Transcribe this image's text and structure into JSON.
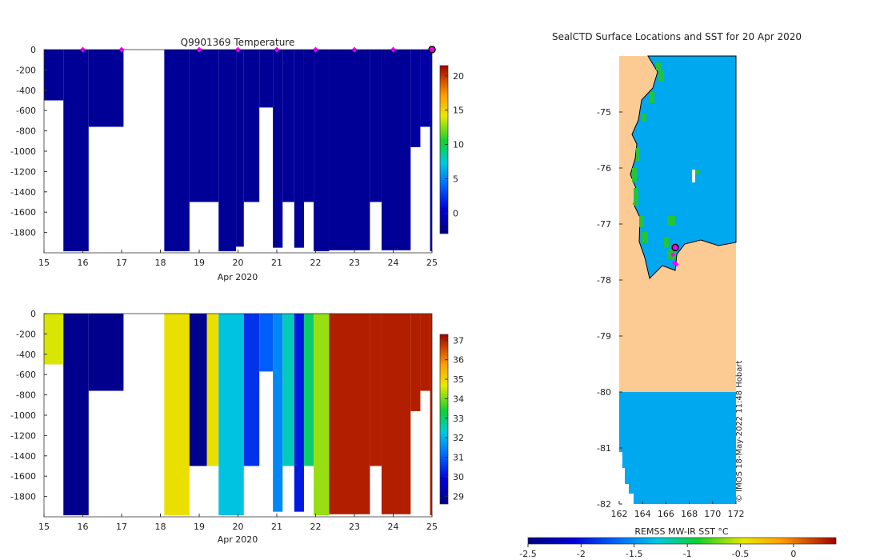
{
  "chart_data": [
    {
      "type": "heatmap",
      "title": "Q9901369  Temperature",
      "xlabel": "Apr 2020",
      "ylabel": "",
      "xlim": [
        15,
        25
      ],
      "ylim": [
        -2000,
        0
      ],
      "x_ticks": [
        "15",
        "16",
        "17",
        "18",
        "19",
        "20",
        "21",
        "22",
        "23",
        "24",
        "25"
      ],
      "y_ticks": [
        "0",
        "-200",
        "-400",
        "-600",
        "-800",
        "-1000",
        "-1200",
        "-1400",
        "-1600",
        "-1800"
      ],
      "colorbar_ticks": [
        "0",
        "5",
        "10",
        "15",
        "20"
      ],
      "colorbar_range": [
        -3,
        21.5
      ],
      "dominant_value": -2,
      "profiles": [
        {
          "x0": 15.0,
          "x1": 15.5,
          "bottom": -500,
          "value": -2
        },
        {
          "x0": 15.5,
          "x1": 16.15,
          "bottom": -1985,
          "value": -2
        },
        {
          "x0": 16.15,
          "x1": 17.05,
          "bottom": -760,
          "value": -2
        },
        {
          "x0": 18.1,
          "x1": 18.75,
          "bottom": -1985,
          "value": -2
        },
        {
          "x0": 18.75,
          "x1": 19.5,
          "bottom": -1500,
          "value": -2
        },
        {
          "x0": 19.5,
          "x1": 19.95,
          "bottom": -1985,
          "value": -2
        },
        {
          "x0": 19.95,
          "x1": 20.15,
          "bottom": -1940,
          "value": -2
        },
        {
          "x0": 20.15,
          "x1": 20.55,
          "bottom": -1500,
          "value": -2
        },
        {
          "x0": 20.55,
          "x1": 20.9,
          "bottom": -570,
          "value": -2
        },
        {
          "x0": 20.9,
          "x1": 21.15,
          "bottom": -1950,
          "value": -2
        },
        {
          "x0": 21.15,
          "x1": 21.45,
          "bottom": -1500,
          "value": -2
        },
        {
          "x0": 21.45,
          "x1": 21.7,
          "bottom": -1950,
          "value": -2
        },
        {
          "x0": 21.7,
          "x1": 21.95,
          "bottom": -1500,
          "value": -2
        },
        {
          "x0": 21.95,
          "x1": 22.35,
          "bottom": -1985,
          "value": -2
        },
        {
          "x0": 22.35,
          "x1": 23.0,
          "bottom": -1975,
          "value": -2
        },
        {
          "x0": 23.0,
          "x1": 23.4,
          "bottom": -1975,
          "value": -2
        },
        {
          "x0": 23.4,
          "x1": 23.7,
          "bottom": -1500,
          "value": -2
        },
        {
          "x0": 23.7,
          "x1": 24.45,
          "bottom": -1975,
          "value": -2
        },
        {
          "x0": 24.45,
          "x1": 24.7,
          "bottom": -960,
          "value": -1.7
        },
        {
          "x0": 24.7,
          "x1": 24.95,
          "bottom": -760,
          "value": -1.5
        },
        {
          "x0": 24.95,
          "x1": 25.1,
          "bottom": -1985,
          "value": -2
        }
      ],
      "markers_x": [
        16,
        17,
        19,
        20,
        21,
        22,
        23,
        24,
        25
      ]
    },
    {
      "type": "heatmap",
      "title": "",
      "xlabel": "Apr 2020",
      "ylabel": "",
      "xlim": [
        15,
        25
      ],
      "ylim": [
        -2000,
        0
      ],
      "x_ticks": [
        "15",
        "16",
        "17",
        "18",
        "19",
        "20",
        "21",
        "22",
        "23",
        "24",
        "25"
      ],
      "y_ticks": [
        "0",
        "-200",
        "-400",
        "-600",
        "-800",
        "-1000",
        "-1200",
        "-1400",
        "-1600",
        "-1800"
      ],
      "colorbar_ticks": [
        "29",
        "30",
        "31",
        "32",
        "33",
        "34",
        "35",
        "36",
        "37"
      ],
      "colorbar_range": [
        28.6,
        37.3
      ],
      "profiles": [
        {
          "x0": 15.0,
          "x1": 15.5,
          "bottom": -500,
          "value": 34.6
        },
        {
          "x0": 15.5,
          "x1": 16.15,
          "bottom": -1985,
          "value": 28.8
        },
        {
          "x0": 16.15,
          "x1": 17.05,
          "bottom": -760,
          "value": 28.8
        },
        {
          "x0": 18.1,
          "x1": 18.75,
          "bottom": -1985,
          "value": 34.8
        },
        {
          "x0": 18.75,
          "x1": 19.2,
          "bottom": -1500,
          "value": 28.8
        },
        {
          "x0": 19.2,
          "x1": 19.5,
          "bottom": -1500,
          "value": 34.8
        },
        {
          "x0": 19.5,
          "x1": 20.15,
          "bottom": -1985,
          "value": 32.2
        },
        {
          "x0": 20.15,
          "x1": 20.55,
          "bottom": -1500,
          "value": 30.5
        },
        {
          "x0": 20.55,
          "x1": 20.9,
          "bottom": -570,
          "value": 31.0
        },
        {
          "x0": 20.9,
          "x1": 21.15,
          "bottom": -1950,
          "value": 31.5
        },
        {
          "x0": 21.15,
          "x1": 21.45,
          "bottom": -1500,
          "value": 32.5
        },
        {
          "x0": 21.45,
          "x1": 21.7,
          "bottom": -1950,
          "value": 30.2
        },
        {
          "x0": 21.7,
          "x1": 21.95,
          "bottom": -1500,
          "value": 33.0
        },
        {
          "x0": 21.95,
          "x1": 22.35,
          "bottom": -1985,
          "value": 34.2
        },
        {
          "x0": 22.35,
          "x1": 23.0,
          "bottom": -1975,
          "value": 37.0
        },
        {
          "x0": 23.0,
          "x1": 23.4,
          "bottom": -1975,
          "value": 37.0
        },
        {
          "x0": 23.4,
          "x1": 23.7,
          "bottom": -1500,
          "value": 37.0
        },
        {
          "x0": 23.7,
          "x1": 24.45,
          "bottom": -1975,
          "value": 37.0
        },
        {
          "x0": 24.45,
          "x1": 24.7,
          "bottom": -960,
          "value": 37.0
        },
        {
          "x0": 24.7,
          "x1": 24.95,
          "bottom": -760,
          "value": 37.0
        },
        {
          "x0": 24.95,
          "x1": 25.1,
          "bottom": -1985,
          "value": 37.0
        }
      ]
    },
    {
      "type": "heatmap",
      "title": "SealCTD Surface Locations and SST for 20 Apr 2020",
      "xlabel": "REMSS MW-IR SST °C",
      "ylabel": "",
      "xlim": [
        162,
        172
      ],
      "ylim": [
        -82,
        -74
      ],
      "x_ticks": [
        "162",
        "164",
        "166",
        "168",
        "170",
        "172"
      ],
      "y_ticks": [
        "-75",
        "-76",
        "-77",
        "-78",
        "-79",
        "-80",
        "-81",
        "-82"
      ],
      "colorbar_ticks": [
        "-2.5",
        "-2",
        "-1.5",
        "-1",
        "-0.5",
        "0"
      ],
      "colorbar_range": [
        -2.5,
        0.4
      ],
      "ocean_sst": -1.75,
      "coast_sst": -1.1,
      "colors": {
        "land": "#fccb94",
        "ocean": "#00a8f0",
        "coast_green": "#22c43c",
        "marker": "#ff00ff"
      },
      "seal_positions": [
        {
          "lon": 166.8,
          "lat": -77.42
        },
        {
          "lon": 166.6,
          "lat": -77.55
        },
        {
          "lon": 166.7,
          "lat": -77.7
        },
        {
          "lon": 166.9,
          "lat": -77.72
        }
      ],
      "credit": "© IMOS 18-May-2022 11:48 Hobart"
    }
  ]
}
